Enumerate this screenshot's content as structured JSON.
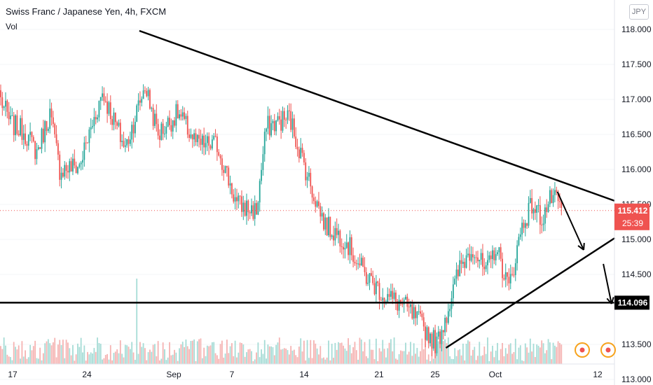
{
  "header": {
    "title": "Swiss Franc / Japanese Yen, 4h, FXCM",
    "volume_label": "Vol",
    "currency": "JPY"
  },
  "colors": {
    "up": "#26a69a",
    "down": "#ef5350",
    "line": "#000000",
    "bg": "#ffffff"
  },
  "chart_data": {
    "type": "candlestick",
    "symbol": "CHFJPY",
    "timeframe": "4h",
    "x_ticks": [
      "17",
      "24",
      "Sep",
      "7",
      "14",
      "21",
      "25",
      "Oct",
      "12"
    ],
    "y_ticks": [
      "118.000",
      "117.500",
      "117.000",
      "116.500",
      "116.000",
      "115.500",
      "115.000",
      "114.500",
      "113.500",
      "113.000"
    ],
    "ylim": [
      112.85,
      118.2
    ],
    "last_price": "115.412",
    "countdown": "25:39",
    "horizontal_level": "114.096",
    "waypoints": [
      [
        0,
        117.0
      ],
      [
        6,
        116.65
      ],
      [
        14,
        116.55
      ],
      [
        22,
        116.25
      ],
      [
        30,
        116.8
      ],
      [
        36,
        116.0
      ],
      [
        48,
        116.05
      ],
      [
        62,
        117.1
      ],
      [
        76,
        116.3
      ],
      [
        88,
        117.2
      ],
      [
        96,
        116.5
      ],
      [
        108,
        116.8
      ],
      [
        120,
        116.35
      ],
      [
        132,
        116.35
      ],
      [
        144,
        115.5
      ],
      [
        156,
        115.4
      ],
      [
        162,
        116.6
      ],
      [
        176,
        116.75
      ],
      [
        190,
        115.7
      ],
      [
        198,
        115.2
      ],
      [
        210,
        115.0
      ],
      [
        222,
        114.5
      ],
      [
        234,
        114.2
      ],
      [
        246,
        114.05
      ],
      [
        256,
        113.8
      ],
      [
        266,
        113.5
      ],
      [
        274,
        114.1
      ],
      [
        280,
        114.6
      ],
      [
        288,
        114.9
      ],
      [
        296,
        114.5
      ],
      [
        302,
        114.9
      ],
      [
        310,
        114.3
      ],
      [
        318,
        115.2
      ],
      [
        324,
        115.5
      ],
      [
        330,
        115.3
      ],
      [
        336,
        115.6
      ],
      [
        342,
        115.45
      ]
    ],
    "trendlines": [
      {
        "from": [
          85,
          117.98
        ],
        "to": [
          375,
          115.55
        ]
      },
      {
        "from": [
          272,
          113.45
        ],
        "to": [
          375,
          115.02
        ]
      }
    ],
    "arrows": [
      {
        "from": [
          340,
          115.68
        ],
        "to": [
          356,
          114.85
        ]
      },
      {
        "from": [
          368,
          114.65
        ],
        "to": [
          373,
          114.08
        ]
      }
    ],
    "volume_spike_index": 83
  }
}
